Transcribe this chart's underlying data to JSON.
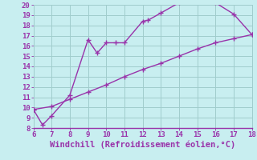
{
  "line1_x": [
    6,
    6.5,
    7,
    8,
    9,
    9.5,
    10,
    10.5,
    11,
    12,
    12.3,
    13,
    14,
    15,
    16,
    17,
    18
  ],
  "line1_y": [
    9.8,
    8.3,
    9.2,
    11.2,
    16.6,
    15.3,
    16.3,
    16.3,
    16.3,
    18.4,
    18.5,
    19.2,
    20.2,
    20.3,
    20.2,
    19.1,
    17.1
  ],
  "line2_x": [
    6,
    7,
    8,
    9,
    10,
    11,
    12,
    13,
    14,
    15,
    16,
    17,
    18
  ],
  "line2_y": [
    9.8,
    10.1,
    10.8,
    11.5,
    12.2,
    13.0,
    13.7,
    14.3,
    15.0,
    15.7,
    16.3,
    16.7,
    17.1
  ],
  "line_color": "#9933aa",
  "bg_color": "#c8eef0",
  "grid_color": "#a0cccc",
  "xlabel": "Windchill (Refroidissement éolien,°C)",
  "xlim": [
    6,
    18
  ],
  "ylim": [
    8,
    20
  ],
  "xticks": [
    6,
    7,
    8,
    9,
    10,
    11,
    12,
    13,
    14,
    15,
    16,
    17,
    18
  ],
  "yticks": [
    8,
    9,
    10,
    11,
    12,
    13,
    14,
    15,
    16,
    17,
    18,
    19,
    20
  ],
  "marker": "+",
  "markersize": 5,
  "linewidth": 1.0,
  "tick_fontsize": 6.5,
  "xlabel_fontsize": 7.5
}
